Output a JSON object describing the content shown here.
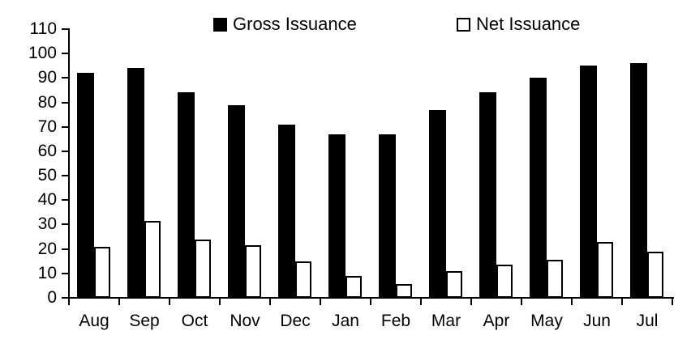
{
  "chart_data": {
    "type": "bar",
    "title": "",
    "xlabel": "",
    "ylabel": "",
    "categories": [
      "Aug",
      "Sep",
      "Oct",
      "Nov",
      "Dec",
      "Jan",
      "Feb",
      "Mar",
      "Apr",
      "May",
      "Jun",
      "Jul"
    ],
    "series": [
      {
        "name": "Gross Issuance",
        "style": "solid",
        "fill_color": "#000000",
        "values": [
          92,
          94,
          84,
          79,
          71,
          67,
          67,
          77,
          84,
          90,
          95,
          96
        ]
      },
      {
        "name": "Net Issuance",
        "style": "outline",
        "fill_color": "#ffffff",
        "border_color": "#000000",
        "values": [
          21,
          31.5,
          24,
          21.5,
          15,
          9,
          5.5,
          11,
          13.5,
          15.5,
          23,
          19
        ]
      }
    ],
    "ylim": [
      0,
      110
    ],
    "yticks": [
      0,
      10,
      20,
      30,
      40,
      50,
      60,
      70,
      80,
      90,
      100,
      110
    ],
    "grid": false,
    "legend_position": "top",
    "axis_color": "#000000",
    "background_color": "#ffffff"
  }
}
